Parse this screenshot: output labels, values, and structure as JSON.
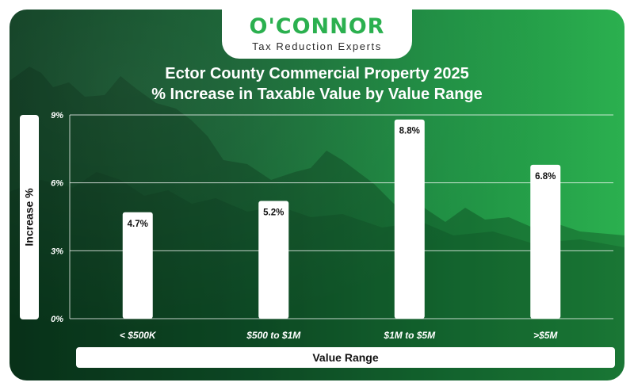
{
  "brand": {
    "name": "O'CONNOR",
    "tagline": "Tax Reduction Experts",
    "color": "#2bb04f"
  },
  "chart_data": {
    "type": "bar",
    "title": "Ector County Commercial Property 2025",
    "subtitle": "% Increase in Taxable Value by Value Range",
    "xlabel": "Value Range",
    "ylabel": "Increase %",
    "categories": [
      "< $500K",
      "$500 to $1M",
      "$1M to $5M",
      ">$5M"
    ],
    "values": [
      4.7,
      5.2,
      8.8,
      6.8
    ],
    "value_labels": [
      "4.7%",
      "5.2%",
      "8.8%",
      "6.8%"
    ],
    "yticks": [
      "0%",
      "3%",
      "6%",
      "9%"
    ],
    "ytick_values": [
      0,
      3,
      6,
      9
    ],
    "ylim": [
      0,
      9
    ],
    "grid": true,
    "legend": "none",
    "bar_color": "#ffffff"
  }
}
